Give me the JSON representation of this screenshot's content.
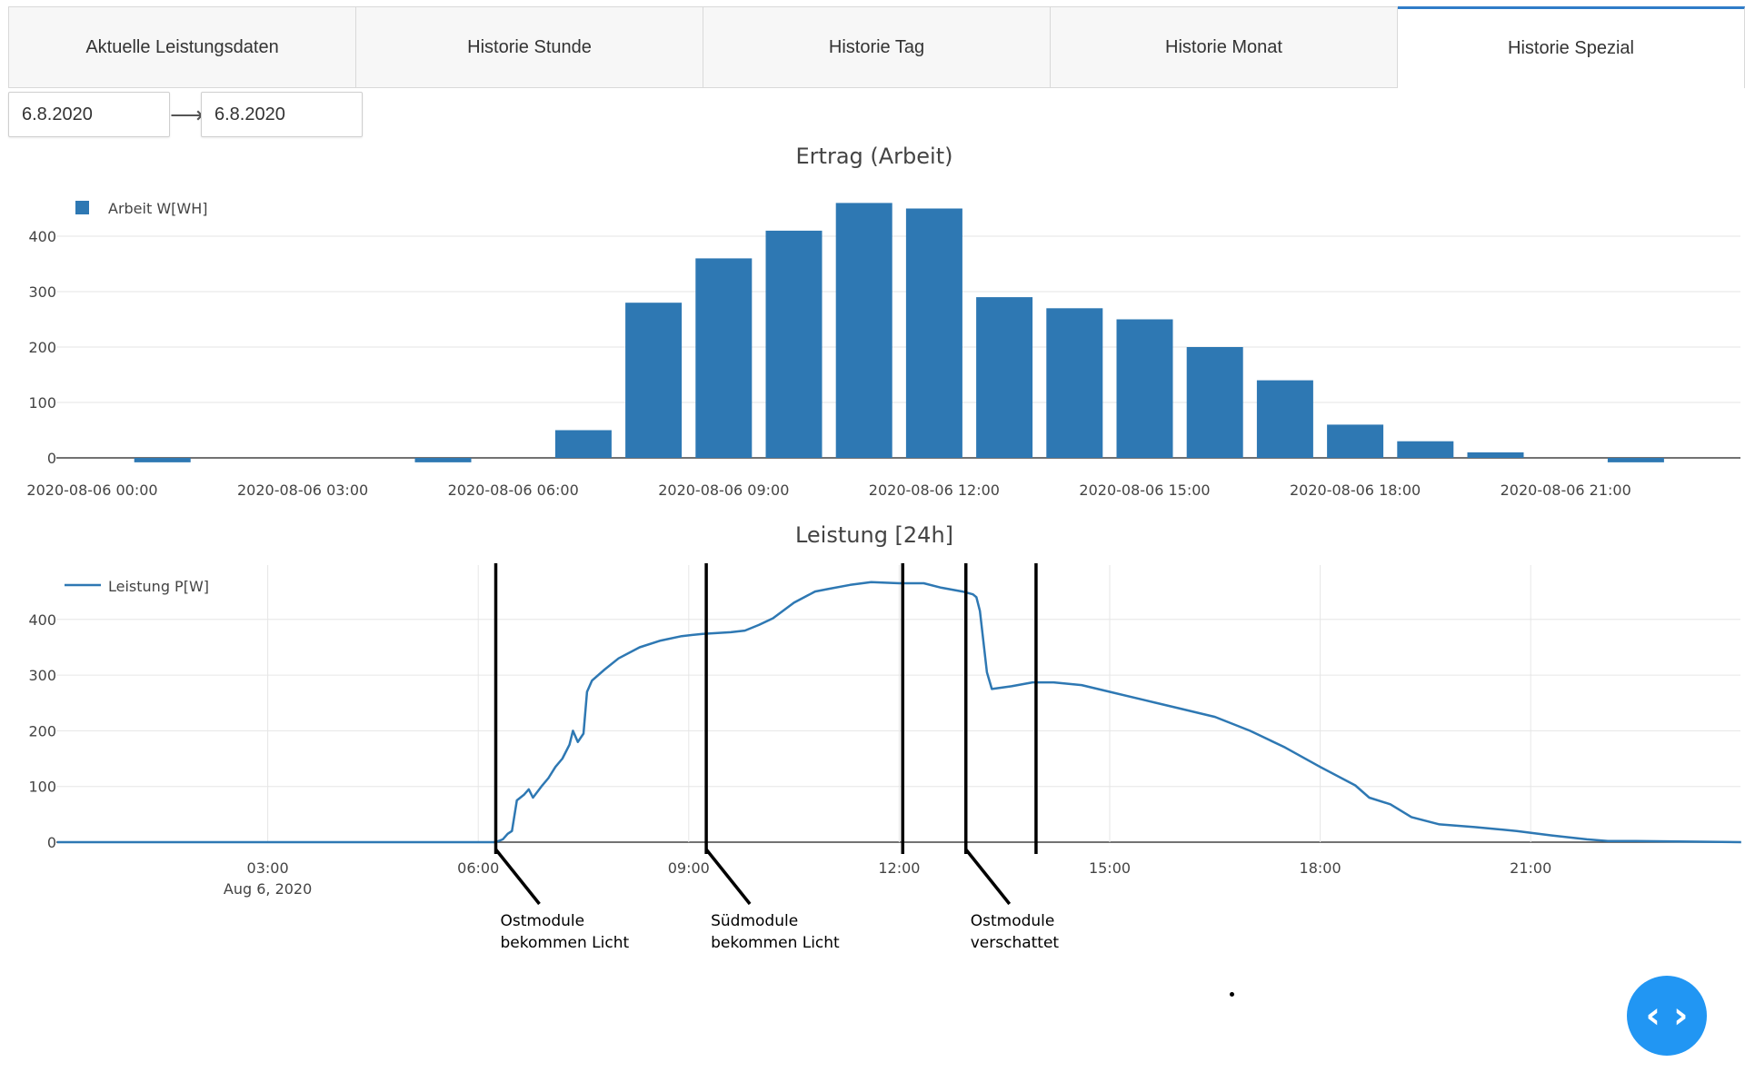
{
  "tabs": [
    {
      "label": "Aktuelle Leistungsdaten",
      "active": false
    },
    {
      "label": "Historie Stunde",
      "active": false
    },
    {
      "label": "Historie Tag",
      "active": false
    },
    {
      "label": "Historie Monat",
      "active": false
    },
    {
      "label": "Historie Spezial",
      "active": true
    }
  ],
  "date_range": {
    "from": "6.8.2020",
    "arrow_icon": "arrow-right-icon",
    "to": "6.8.2020"
  },
  "colors": {
    "accent": "#2f7cc8",
    "bar": "#2e78b3",
    "line": "#2e78b3",
    "button": "#2196f3"
  },
  "chart_data": [
    {
      "type": "bar",
      "title": "Ertrag (Arbeit)",
      "legend": {
        "label": "Arbeit W[WH]",
        "placement": "top-left"
      },
      "x_unit": "hour",
      "x": [
        0,
        1,
        2,
        3,
        4,
        5,
        6,
        7,
        8,
        9,
        10,
        11,
        12,
        13,
        14,
        15,
        16,
        17,
        18,
        19,
        20,
        21,
        22,
        23
      ],
      "values": [
        0,
        -8,
        0,
        0,
        0,
        -8,
        0,
        50,
        280,
        360,
        410,
        460,
        450,
        290,
        270,
        250,
        200,
        140,
        60,
        30,
        10,
        0,
        -8,
        0
      ],
      "xticks": [
        {
          "x": 0,
          "label": "2020-08-06 00:00"
        },
        {
          "x": 3,
          "label": "2020-08-06 03:00"
        },
        {
          "x": 6,
          "label": "2020-08-06 06:00"
        },
        {
          "x": 9,
          "label": "2020-08-06 09:00"
        },
        {
          "x": 12,
          "label": "2020-08-06 12:00"
        },
        {
          "x": 15,
          "label": "2020-08-06 15:00"
        },
        {
          "x": 18,
          "label": "2020-08-06 18:00"
        },
        {
          "x": 21,
          "label": "2020-08-06 21:00"
        }
      ],
      "yticks": [
        "0",
        "100",
        "200",
        "300",
        "400"
      ],
      "ylim": [
        -15,
        470
      ],
      "grid": true
    },
    {
      "type": "line",
      "title": "Leistung [24h]",
      "legend": {
        "label": "Leistung P[W]",
        "placement": "top-left"
      },
      "x_unit": "hour",
      "points": [
        [
          0,
          0
        ],
        [
          6.25,
          0
        ],
        [
          6.35,
          5
        ],
        [
          6.42,
          15
        ],
        [
          6.48,
          20
        ],
        [
          6.55,
          75
        ],
        [
          6.65,
          85
        ],
        [
          6.72,
          95
        ],
        [
          6.78,
          80
        ],
        [
          6.9,
          100
        ],
        [
          7.0,
          115
        ],
        [
          7.1,
          135
        ],
        [
          7.2,
          150
        ],
        [
          7.3,
          175
        ],
        [
          7.35,
          200
        ],
        [
          7.42,
          180
        ],
        [
          7.5,
          195
        ],
        [
          7.55,
          270
        ],
        [
          7.62,
          290
        ],
        [
          7.8,
          310
        ],
        [
          8.0,
          330
        ],
        [
          8.3,
          350
        ],
        [
          8.6,
          362
        ],
        [
          8.9,
          370
        ],
        [
          9.2,
          374
        ],
        [
          9.6,
          377
        ],
        [
          9.8,
          380
        ],
        [
          10.0,
          390
        ],
        [
          10.2,
          402
        ],
        [
          10.5,
          430
        ],
        [
          10.8,
          450
        ],
        [
          11.0,
          455
        ],
        [
          11.3,
          462
        ],
        [
          11.6,
          467
        ],
        [
          12.0,
          465
        ],
        [
          12.35,
          465
        ],
        [
          12.6,
          457
        ],
        [
          12.9,
          450
        ],
        [
          13.05,
          445
        ],
        [
          13.1,
          440
        ],
        [
          13.15,
          415
        ],
        [
          13.25,
          305
        ],
        [
          13.32,
          275
        ],
        [
          13.6,
          280
        ],
        [
          13.9,
          287
        ],
        [
          14.2,
          287
        ],
        [
          14.6,
          282
        ],
        [
          15.0,
          270
        ],
        [
          15.5,
          255
        ],
        [
          16.0,
          240
        ],
        [
          16.5,
          225
        ],
        [
          17.0,
          200
        ],
        [
          17.5,
          170
        ],
        [
          18.0,
          135
        ],
        [
          18.5,
          102
        ],
        [
          18.7,
          80
        ],
        [
          19.0,
          68
        ],
        [
          19.3,
          45
        ],
        [
          19.7,
          32
        ],
        [
          20.2,
          27
        ],
        [
          20.8,
          20
        ],
        [
          21.3,
          12
        ],
        [
          21.8,
          5
        ],
        [
          22.1,
          2
        ],
        [
          22.5,
          2
        ],
        [
          24,
          0
        ]
      ],
      "xticks": [
        {
          "x": 3,
          "label": "03:00",
          "sublabel": "Aug 6, 2020"
        },
        {
          "x": 6,
          "label": "06:00"
        },
        {
          "x": 9,
          "label": "09:00"
        },
        {
          "x": 12,
          "label": "12:00"
        },
        {
          "x": 15,
          "label": "15:00"
        },
        {
          "x": 18,
          "label": "18:00"
        },
        {
          "x": 21,
          "label": "21:00"
        }
      ],
      "yticks": [
        "0",
        "100",
        "200",
        "300",
        "400"
      ],
      "ylim": [
        0,
        490
      ],
      "grid": true,
      "annotations": [
        {
          "x": 6.25,
          "text1": "Ostmodule",
          "text2": "bekommen Licht"
        },
        {
          "x": 9.25,
          "text1": "Südmodule",
          "text2": "bekommen Licht"
        },
        {
          "x": 12.05,
          "text1": "",
          "text2": ""
        },
        {
          "x": 12.95,
          "text1": "Ostmodule",
          "text2": "verschattet"
        },
        {
          "x": 13.95,
          "text1": "",
          "text2": ""
        }
      ]
    }
  ],
  "fab": {
    "icon": "code-brackets-icon",
    "glyph": "‹ ›"
  }
}
